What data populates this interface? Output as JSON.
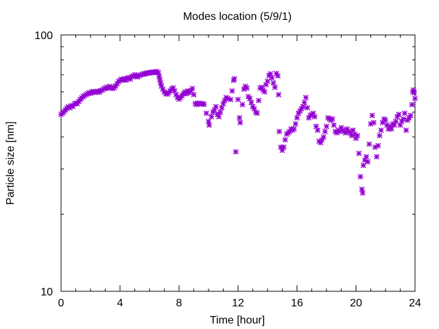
{
  "chart_data": {
    "type": "scatter",
    "title": "Modes location (5/9/1)",
    "xlabel": "Time [hour]",
    "ylabel": "Particle size [nm]",
    "xlim": [
      0,
      24
    ],
    "ylim": [
      10,
      100
    ],
    "yscale": "log",
    "grid": false,
    "marker_color": "#9400d3",
    "x_ticks": [
      0,
      4,
      8,
      12,
      16,
      20,
      24
    ],
    "x_tick_labels": [
      "0",
      "4",
      "8",
      "12",
      "16",
      "20",
      "24"
    ],
    "y_major_ticks": [
      10,
      100
    ],
    "y_tick_labels": [
      "10",
      "100"
    ],
    "y_minor_ticks": [
      20,
      30,
      40,
      50,
      60,
      70,
      80,
      90
    ],
    "x_minor_ticks": [
      1,
      2,
      3,
      5,
      6,
      7,
      9,
      10,
      11,
      13,
      14,
      15,
      17,
      18,
      19,
      21,
      22,
      23
    ],
    "points": [
      [
        0.0,
        49.0
      ],
      [
        0.1,
        49.5
      ],
      [
        0.2,
        50.2
      ],
      [
        0.3,
        51.0
      ],
      [
        0.4,
        51.8
      ],
      [
        0.5,
        52.5
      ],
      [
        0.6,
        52.0
      ],
      [
        0.7,
        53.0
      ],
      [
        0.8,
        52.6
      ],
      [
        0.9,
        53.8
      ],
      [
        1.0,
        54.2
      ],
      [
        1.1,
        54.0
      ],
      [
        1.2,
        55.0
      ],
      [
        1.3,
        56.0
      ],
      [
        1.4,
        56.8
      ],
      [
        1.5,
        57.5
      ],
      [
        1.6,
        58.0
      ],
      [
        1.7,
        58.5
      ],
      [
        1.8,
        59.0
      ],
      [
        1.9,
        59.5
      ],
      [
        2.0,
        59.2
      ],
      [
        2.1,
        60.0
      ],
      [
        2.2,
        60.2
      ],
      [
        2.3,
        59.6
      ],
      [
        2.4,
        60.0
      ],
      [
        2.5,
        60.4
      ],
      [
        2.6,
        59.8
      ],
      [
        2.7,
        60.6
      ],
      [
        2.8,
        61.0
      ],
      [
        2.9,
        61.6
      ],
      [
        3.0,
        62.0
      ],
      [
        3.1,
        62.6
      ],
      [
        3.2,
        62.0
      ],
      [
        3.3,
        63.0
      ],
      [
        3.4,
        62.4
      ],
      [
        3.5,
        61.8
      ],
      [
        3.6,
        62.2
      ],
      [
        3.7,
        63.2
      ],
      [
        3.8,
        64.5
      ],
      [
        3.9,
        65.8
      ],
      [
        4.0,
        66.5
      ],
      [
        4.1,
        67.2
      ],
      [
        4.2,
        66.8
      ],
      [
        4.3,
        67.5
      ],
      [
        4.4,
        66.6
      ],
      [
        4.5,
        67.8
      ],
      [
        4.6,
        68.2
      ],
      [
        4.7,
        67.2
      ],
      [
        4.8,
        68.8
      ],
      [
        4.9,
        69.2
      ],
      [
        5.0,
        70.0
      ],
      [
        5.1,
        69.0
      ],
      [
        5.2,
        68.6
      ],
      [
        5.3,
        69.4
      ],
      [
        5.4,
        69.8
      ],
      [
        5.5,
        70.2
      ],
      [
        5.6,
        70.6
      ],
      [
        5.7,
        70.4
      ],
      [
        5.8,
        70.9
      ],
      [
        5.9,
        71.2
      ],
      [
        6.0,
        71.0
      ],
      [
        6.1,
        71.5
      ],
      [
        6.2,
        71.3
      ],
      [
        6.3,
        71.8
      ],
      [
        6.4,
        71.4
      ],
      [
        6.5,
        72.0
      ],
      [
        6.6,
        71.2
      ],
      [
        6.65,
        69.0
      ],
      [
        6.7,
        67.0
      ],
      [
        6.75,
        65.0
      ],
      [
        6.8,
        63.2
      ],
      [
        6.9,
        61.5
      ],
      [
        7.0,
        60.0
      ],
      [
        7.1,
        59.0
      ],
      [
        7.2,
        58.8
      ],
      [
        7.3,
        59.5
      ],
      [
        7.4,
        60.5
      ],
      [
        7.5,
        61.5
      ],
      [
        7.6,
        62.2
      ],
      [
        7.7,
        60.5
      ],
      [
        7.8,
        58.5
      ],
      [
        7.9,
        57.0
      ],
      [
        8.0,
        56.2
      ],
      [
        8.1,
        57.0
      ],
      [
        8.2,
        58.0
      ],
      [
        8.3,
        59.0
      ],
      [
        8.4,
        60.0
      ],
      [
        8.5,
        59.0
      ],
      [
        8.6,
        60.5
      ],
      [
        8.7,
        59.5
      ],
      [
        8.8,
        60.5
      ],
      [
        8.9,
        61.8
      ],
      [
        9.0,
        58.5
      ],
      [
        9.1,
        54.0
      ],
      [
        9.2,
        53.5
      ],
      [
        9.3,
        54.2
      ],
      [
        9.4,
        54.0
      ],
      [
        9.5,
        53.8
      ],
      [
        9.6,
        54.0
      ],
      [
        9.7,
        53.6
      ],
      [
        9.85,
        49.5
      ],
      [
        10.0,
        46.0
      ],
      [
        10.05,
        44.5
      ],
      [
        10.2,
        48.0
      ],
      [
        10.3,
        50.0
      ],
      [
        10.4,
        51.0
      ],
      [
        10.5,
        52.5
      ],
      [
        10.6,
        49.0
      ],
      [
        10.7,
        48.0
      ],
      [
        10.8,
        50.0
      ],
      [
        10.9,
        52.0
      ],
      [
        11.0,
        54.0
      ],
      [
        11.1,
        55.5
      ],
      [
        11.2,
        57.0
      ],
      [
        11.3,
        56.5
      ],
      [
        11.5,
        56.0
      ],
      [
        11.6,
        60.5
      ],
      [
        11.7,
        66.5
      ],
      [
        11.75,
        67.5
      ],
      [
        11.85,
        35.0
      ],
      [
        12.0,
        56.0
      ],
      [
        12.1,
        47.5
      ],
      [
        12.15,
        45.5
      ],
      [
        12.3,
        53.5
      ],
      [
        12.4,
        61.5
      ],
      [
        12.5,
        63.0
      ],
      [
        12.6,
        62.0
      ],
      [
        12.7,
        57.5
      ],
      [
        12.8,
        56.5
      ],
      [
        12.9,
        54.5
      ],
      [
        13.0,
        52.5
      ],
      [
        13.1,
        51.5
      ],
      [
        13.2,
        50.0
      ],
      [
        13.3,
        49.5
      ],
      [
        13.4,
        55.5
      ],
      [
        13.5,
        62.0
      ],
      [
        13.6,
        62.5
      ],
      [
        13.7,
        61.0
      ],
      [
        13.8,
        60.0
      ],
      [
        13.9,
        64.0
      ],
      [
        14.0,
        66.0
      ],
      [
        14.1,
        69.5
      ],
      [
        14.2,
        70.5
      ],
      [
        14.3,
        68.0
      ],
      [
        14.4,
        65.0
      ],
      [
        14.5,
        62.5
      ],
      [
        14.6,
        70.8
      ],
      [
        14.7,
        69.2
      ],
      [
        14.75,
        58.5
      ],
      [
        14.8,
        42.0
      ],
      [
        14.9,
        36.5
      ],
      [
        15.0,
        35.5
      ],
      [
        15.1,
        36.5
      ],
      [
        15.2,
        39.0
      ],
      [
        15.3,
        41.0
      ],
      [
        15.4,
        41.5
      ],
      [
        15.5,
        42.0
      ],
      [
        15.6,
        43.0
      ],
      [
        15.7,
        42.5
      ],
      [
        15.8,
        43.0
      ],
      [
        15.9,
        45.0
      ],
      [
        16.0,
        47.5
      ],
      [
        16.1,
        49.5
      ],
      [
        16.2,
        50.5
      ],
      [
        16.3,
        51.5
      ],
      [
        16.4,
        52.5
      ],
      [
        16.5,
        54.5
      ],
      [
        16.6,
        57.0
      ],
      [
        16.7,
        52.0
      ],
      [
        16.8,
        47.5
      ],
      [
        16.9,
        48.5
      ],
      [
        17.0,
        49.0
      ],
      [
        17.1,
        49.5
      ],
      [
        17.2,
        48.0
      ],
      [
        17.3,
        44.0
      ],
      [
        17.4,
        42.5
      ],
      [
        17.5,
        38.5
      ],
      [
        17.6,
        38.0
      ],
      [
        17.7,
        39.0
      ],
      [
        17.8,
        40.0
      ],
      [
        17.9,
        42.0
      ],
      [
        18.0,
        44.0
      ],
      [
        18.1,
        47.5
      ],
      [
        18.2,
        47.0
      ],
      [
        18.3,
        46.5
      ],
      [
        18.4,
        47.0
      ],
      [
        18.5,
        44.5
      ],
      [
        18.6,
        42.0
      ],
      [
        18.7,
        41.5
      ],
      [
        18.8,
        42.5
      ],
      [
        18.9,
        42.0
      ],
      [
        19.0,
        43.5
      ],
      [
        19.1,
        42.5
      ],
      [
        19.2,
        42.0
      ],
      [
        19.3,
        41.5
      ],
      [
        19.4,
        43.0
      ],
      [
        19.5,
        42.0
      ],
      [
        19.6,
        41.5
      ],
      [
        19.7,
        40.5
      ],
      [
        19.8,
        42.5
      ],
      [
        19.9,
        41.0
      ],
      [
        20.0,
        39.5
      ],
      [
        20.1,
        40.5
      ],
      [
        20.2,
        34.5
      ],
      [
        20.3,
        28.0
      ],
      [
        20.4,
        25.0
      ],
      [
        20.45,
        24.2
      ],
      [
        20.5,
        31.0
      ],
      [
        20.6,
        32.5
      ],
      [
        20.7,
        33.5
      ],
      [
        20.8,
        32.0
      ],
      [
        20.9,
        37.5
      ],
      [
        21.0,
        45.0
      ],
      [
        21.1,
        48.5
      ],
      [
        21.2,
        45.5
      ],
      [
        21.3,
        36.5
      ],
      [
        21.4,
        33.5
      ],
      [
        21.5,
        37.0
      ],
      [
        21.6,
        40.5
      ],
      [
        21.7,
        42.5
      ],
      [
        21.8,
        45.5
      ],
      [
        21.9,
        47.0
      ],
      [
        22.0,
        46.5
      ],
      [
        22.1,
        44.5
      ],
      [
        22.2,
        43.0
      ],
      [
        22.3,
        44.0
      ],
      [
        22.4,
        43.0
      ],
      [
        22.5,
        45.0
      ],
      [
        22.6,
        44.5
      ],
      [
        22.7,
        46.0
      ],
      [
        22.8,
        48.0
      ],
      [
        22.9,
        49.0
      ],
      [
        23.0,
        44.5
      ],
      [
        23.1,
        46.0
      ],
      [
        23.2,
        47.0
      ],
      [
        23.3,
        49.5
      ],
      [
        23.4,
        42.5
      ],
      [
        23.5,
        46.5
      ],
      [
        23.6,
        47.5
      ],
      [
        23.7,
        48.5
      ],
      [
        23.8,
        53.5
      ],
      [
        23.85,
        60.0
      ],
      [
        23.9,
        61.0
      ],
      [
        23.95,
        59.5
      ],
      [
        24.0,
        56.5
      ]
    ]
  }
}
